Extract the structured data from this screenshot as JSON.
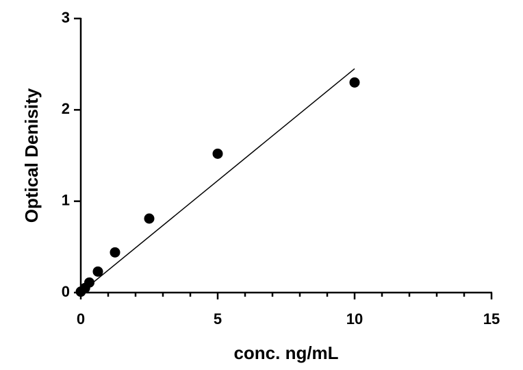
{
  "chart_data": {
    "type": "scatter",
    "xlabel": "conc. ng/mL",
    "ylabel": "Optical Denisity",
    "x": [
      0,
      0.156,
      0.3125,
      0.625,
      1.25,
      2.5,
      5,
      10
    ],
    "values": [
      0.01,
      0.05,
      0.11,
      0.23,
      0.44,
      0.81,
      1.52,
      2.3
    ],
    "color": "#000000",
    "fit_line": {
      "x": [
        0,
        10
      ],
      "values": [
        0.0,
        2.45
      ]
    },
    "xlim": [
      0,
      15
    ],
    "ylim": [
      0,
      3
    ],
    "xticks": [
      0,
      5,
      10,
      15
    ],
    "yticks": [
      0,
      1,
      2,
      3
    ],
    "xminorticks": [
      1,
      2,
      3,
      4,
      6,
      7,
      8,
      9,
      11,
      12,
      13,
      14
    ]
  }
}
